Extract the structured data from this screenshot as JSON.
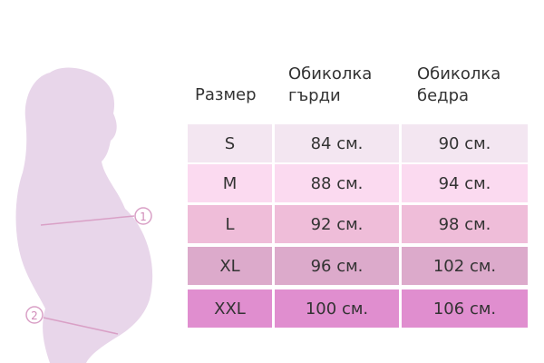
{
  "table": {
    "header": [
      "Размер",
      "Обиколка гърди",
      "Обиколка бедра"
    ],
    "rows": [
      [
        "S",
        "84 см.",
        "90 см."
      ],
      [
        "M",
        "88 см.",
        "94 см."
      ],
      [
        "L",
        "92 см.",
        "98 см."
      ],
      [
        "XL",
        "96 см.",
        "102 см."
      ],
      [
        "XXL",
        "100 см.",
        "106 см."
      ]
    ]
  },
  "markers": [
    "1",
    "2"
  ]
}
